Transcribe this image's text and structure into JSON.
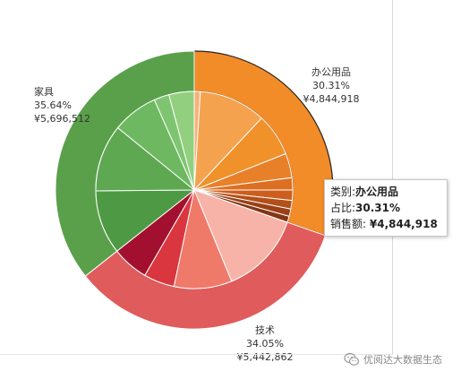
{
  "chart_data": {
    "type": "sunburst",
    "title": "",
    "outer_ring": [
      {
        "name": "办公用品",
        "share": 30.31,
        "share_label": "30.31%",
        "value_label": "¥4,844,918",
        "color": "#f28c28",
        "highlighted": true
      },
      {
        "name": "技术",
        "share": 34.05,
        "share_label": "34.05%",
        "value_label": "¥5,442,862",
        "color": "#e05b5b"
      },
      {
        "name": "家具",
        "share": 35.64,
        "share_label": "35.64%",
        "value_label": "¥5,696,512",
        "color": "#5aa04b"
      }
    ],
    "inner_ring": [
      {
        "parent": "办公用品",
        "share": 1.0,
        "color": "#f7b27a"
      },
      {
        "parent": "办公用品",
        "share": 11.0,
        "color": "#f5a24f"
      },
      {
        "parent": "办公用品",
        "share": 7.0,
        "color": "#f0912a"
      },
      {
        "parent": "办公用品",
        "share": 4.0,
        "color": "#e8802a"
      },
      {
        "parent": "办公用品",
        "share": 2.0,
        "color": "#dd6f22"
      },
      {
        "parent": "办公用品",
        "share": 1.7,
        "color": "#cc5f1d"
      },
      {
        "parent": "办公用品",
        "share": 1.4,
        "color": "#b24f1a"
      },
      {
        "parent": "办公用品",
        "share": 1.2,
        "color": "#9a4016"
      },
      {
        "parent": "办公用品",
        "share": 1.01,
        "color": "#823514"
      },
      {
        "parent": "技术",
        "share": 13.5,
        "color": "#f7b3a8"
      },
      {
        "parent": "技术",
        "share": 9.5,
        "color": "#f07a6a"
      },
      {
        "parent": "技术",
        "share": 5.05,
        "color": "#d9363f"
      },
      {
        "parent": "技术",
        "share": 6.0,
        "color": "#a3102f"
      },
      {
        "parent": "家具",
        "share": 10.5,
        "color": "#4e9a44"
      },
      {
        "parent": "家具",
        "share": 11.0,
        "color": "#5ea852"
      },
      {
        "parent": "家具",
        "share": 7.5,
        "color": "#6fb862"
      },
      {
        "parent": "家具",
        "share": 2.5,
        "color": "#7fc571"
      },
      {
        "parent": "家具",
        "share": 4.14,
        "color": "#92d07f"
      }
    ]
  },
  "tooltip": {
    "category_label": "类别:",
    "category_value": "办公用品",
    "share_label": "占比:",
    "share_value": "30.31%",
    "sales_label": "销售额:",
    "sales_value": "¥4,844,918"
  },
  "watermark": {
    "text": "优阅达大数据生态",
    "icon": "wechat-icon"
  }
}
